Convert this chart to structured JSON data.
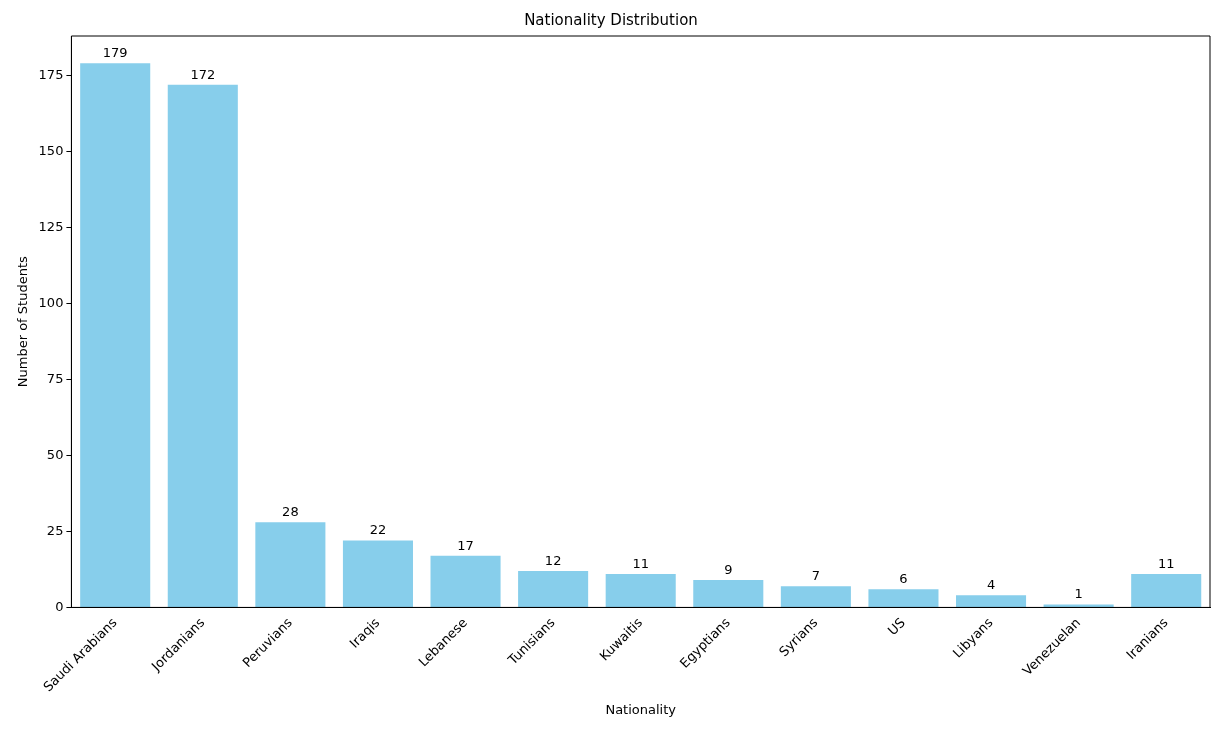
{
  "chart_data": {
    "type": "bar",
    "title": "Nationality Distribution",
    "xlabel": "Nationality",
    "ylabel": "Number of Students",
    "categories": [
      "Saudi Arabians",
      "Jordanians",
      "Peruvians",
      "Iraqis",
      "Lebanese",
      "Tunisians",
      "Kuwaitis",
      "Egyptians",
      "Syrians",
      "US",
      "Libyans",
      "Venezuelan",
      "Iranians"
    ],
    "values": [
      179,
      172,
      28,
      22,
      17,
      12,
      11,
      9,
      7,
      6,
      4,
      1,
      11
    ],
    "color": "#87ceeb",
    "ylim": [
      0,
      188
    ],
    "yticks": [
      0,
      25,
      50,
      75,
      100,
      125,
      150,
      175
    ],
    "grid": false,
    "data_labels": true
  }
}
